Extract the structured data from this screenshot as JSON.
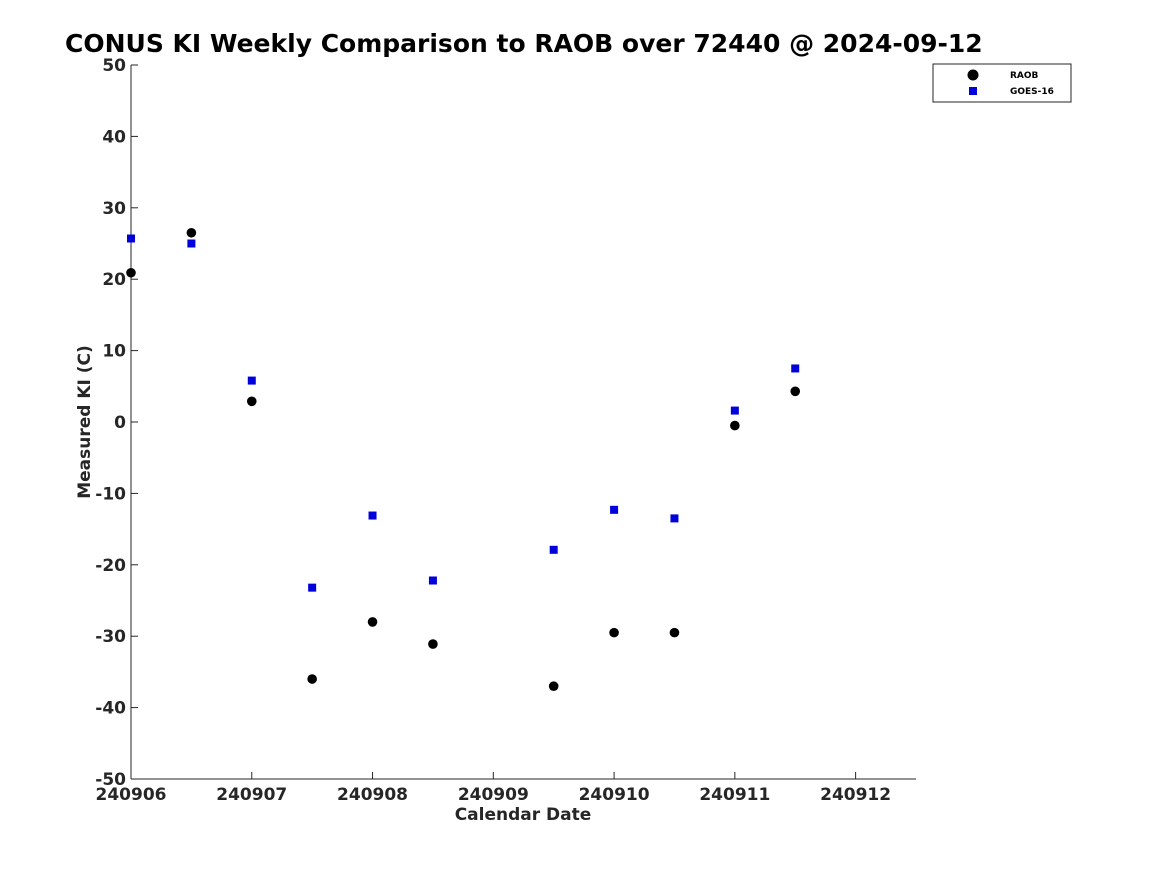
{
  "chart_data": {
    "type": "scatter",
    "title": "CONUS KI Weekly Comparison to RAOB over 72440 @ 2024-09-12",
    "xlabel": "Calendar Date",
    "ylabel": "Measured KI (C)",
    "x_tick_labels": [
      "240906",
      "240907",
      "240908",
      "240909",
      "240910",
      "240911",
      "240912"
    ],
    "x_tick_values": [
      0,
      1,
      2,
      3,
      4,
      5,
      6
    ],
    "xlim": [
      0,
      6.5
    ],
    "ylim": [
      -50,
      50
    ],
    "y_ticks": [
      -50,
      -40,
      -30,
      -20,
      -10,
      0,
      10,
      20,
      30,
      40,
      50
    ],
    "grid": false,
    "legend_position": "top-right",
    "series": [
      {
        "name": "RAOB",
        "marker": "circle",
        "color": "#000000",
        "x": [
          0,
          0.5,
          1,
          1.5,
          2,
          2.5,
          3.5,
          4,
          4.5,
          5,
          5.5
        ],
        "y": [
          20.9,
          26.5,
          2.9,
          -36.0,
          -28.0,
          -31.1,
          -37.0,
          -29.5,
          -29.5,
          -0.5,
          4.3
        ]
      },
      {
        "name": "GOES-16",
        "marker": "square",
        "color": "#0000dd",
        "x": [
          0,
          0.5,
          1,
          1.5,
          2,
          2.5,
          3.5,
          4,
          4.5,
          5,
          5.5
        ],
        "y": [
          25.7,
          25.0,
          5.8,
          -23.2,
          -13.1,
          -22.2,
          -17.9,
          -12.3,
          -13.5,
          1.6,
          7.5
        ]
      }
    ]
  }
}
